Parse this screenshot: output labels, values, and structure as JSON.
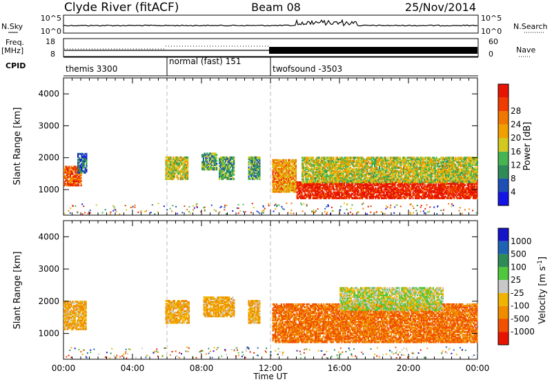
{
  "header": {
    "station": "Clyde River (fitACF)",
    "beam": "Beam 08",
    "date": "25/Nov/2014"
  },
  "strip_labels": {
    "nsky": "N.Sky",
    "nsky_hi": "10^5",
    "nsky_lo": "10^0",
    "nsearch": "N.Search",
    "freq_line1": "Freq.",
    "freq_line2": "[MHz]",
    "freq_hi": "18",
    "freq_lo": "8",
    "nave": "Nave",
    "nave_hi": "60",
    "nave_lo": "0",
    "cpid": "CPID"
  },
  "cpid_segments": [
    {
      "label": "themis 3300",
      "start_h": 0,
      "end_h": 6
    },
    {
      "label": "normal (fast) 151",
      "start_h": 6,
      "end_h": 12
    },
    {
      "label": "twofsound -3503",
      "start_h": 12,
      "end_h": 24
    }
  ],
  "colors": {
    "power_scale": [
      "#1414e6",
      "#1e4fb4",
      "#2e8b57",
      "#46b450",
      "#d2c81e",
      "#f0a000",
      "#f07800",
      "#f03c00",
      "#e61400"
    ],
    "velocity_scale": [
      "#1414c8",
      "#1e64b4",
      "#2e8b57",
      "#50c83c",
      "#c8c8c8",
      "#f0b400",
      "#f08c00",
      "#f05000",
      "#e61400"
    ]
  },
  "chart_data": [
    {
      "type": "heatmap",
      "panel": "power",
      "xlabel": "",
      "ylabel": "Slant Range [km]",
      "xlim": [
        0,
        24
      ],
      "ylim": [
        200,
        4500
      ],
      "y_ticks": [
        "1000",
        "2000",
        "3000",
        "4000"
      ],
      "colorbar_label": "Power [dB]",
      "colorbar_ticks": [
        "4",
        "8",
        "12",
        "16",
        "20",
        "24",
        "28"
      ],
      "blobs": [
        {
          "t0": 0.0,
          "t1": 1.0,
          "r0": 1100,
          "r1": 1700,
          "v": 24
        },
        {
          "t0": 0.8,
          "t1": 1.3,
          "r0": 1500,
          "r1": 2100,
          "v": 8
        },
        {
          "t0": 5.9,
          "t1": 7.2,
          "r0": 1300,
          "r1": 2000,
          "v": 16
        },
        {
          "t0": 8.0,
          "t1": 8.9,
          "r0": 1600,
          "r1": 2100,
          "v": 12
        },
        {
          "t0": 9.0,
          "t1": 9.9,
          "r0": 1300,
          "r1": 2000,
          "v": 12
        },
        {
          "t0": 10.7,
          "t1": 11.4,
          "r0": 1300,
          "r1": 2000,
          "v": 12
        },
        {
          "t0": 12.1,
          "t1": 13.5,
          "r0": 900,
          "r1": 1900,
          "v": 20
        },
        {
          "t0": 13.5,
          "t1": 24.0,
          "r0": 700,
          "r1": 1200,
          "v": 28
        },
        {
          "t0": 13.8,
          "t1": 24.0,
          "r0": 1200,
          "r1": 2000,
          "v": 16
        }
      ]
    },
    {
      "type": "heatmap",
      "panel": "velocity",
      "xlabel": "Time UT",
      "ylabel": "Slant Range [km]",
      "xlim": [
        0,
        24
      ],
      "ylim": [
        200,
        4500
      ],
      "x_ticks": [
        "00:00",
        "04:00",
        "08:00",
        "12:00",
        "16:00",
        "20:00",
        "00:00"
      ],
      "y_ticks": [
        "1000",
        "2000",
        "3000",
        "4000"
      ],
      "colorbar_label": "Velocity [m s^-1]",
      "colorbar_ticks": [
        "1000",
        "500",
        "100",
        "25",
        "-25",
        "-100",
        "-500",
        "-1000"
      ],
      "blobs": [
        {
          "t0": 0.0,
          "t1": 1.3,
          "r0": 1100,
          "r1": 2000,
          "v": -100
        },
        {
          "t0": 5.9,
          "t1": 7.3,
          "r0": 1300,
          "r1": 2000,
          "v": -100
        },
        {
          "t0": 8.1,
          "t1": 9.9,
          "r0": 1500,
          "r1": 2100,
          "v": -100
        },
        {
          "t0": 10.7,
          "t1": 11.4,
          "r0": 1300,
          "r1": 2000,
          "v": -100
        },
        {
          "t0": 12.1,
          "t1": 24.0,
          "r0": 700,
          "r1": 1900,
          "v": -500
        },
        {
          "t0": 16.0,
          "t1": 22.0,
          "r0": 1700,
          "r1": 2400,
          "v": 0
        }
      ]
    }
  ]
}
